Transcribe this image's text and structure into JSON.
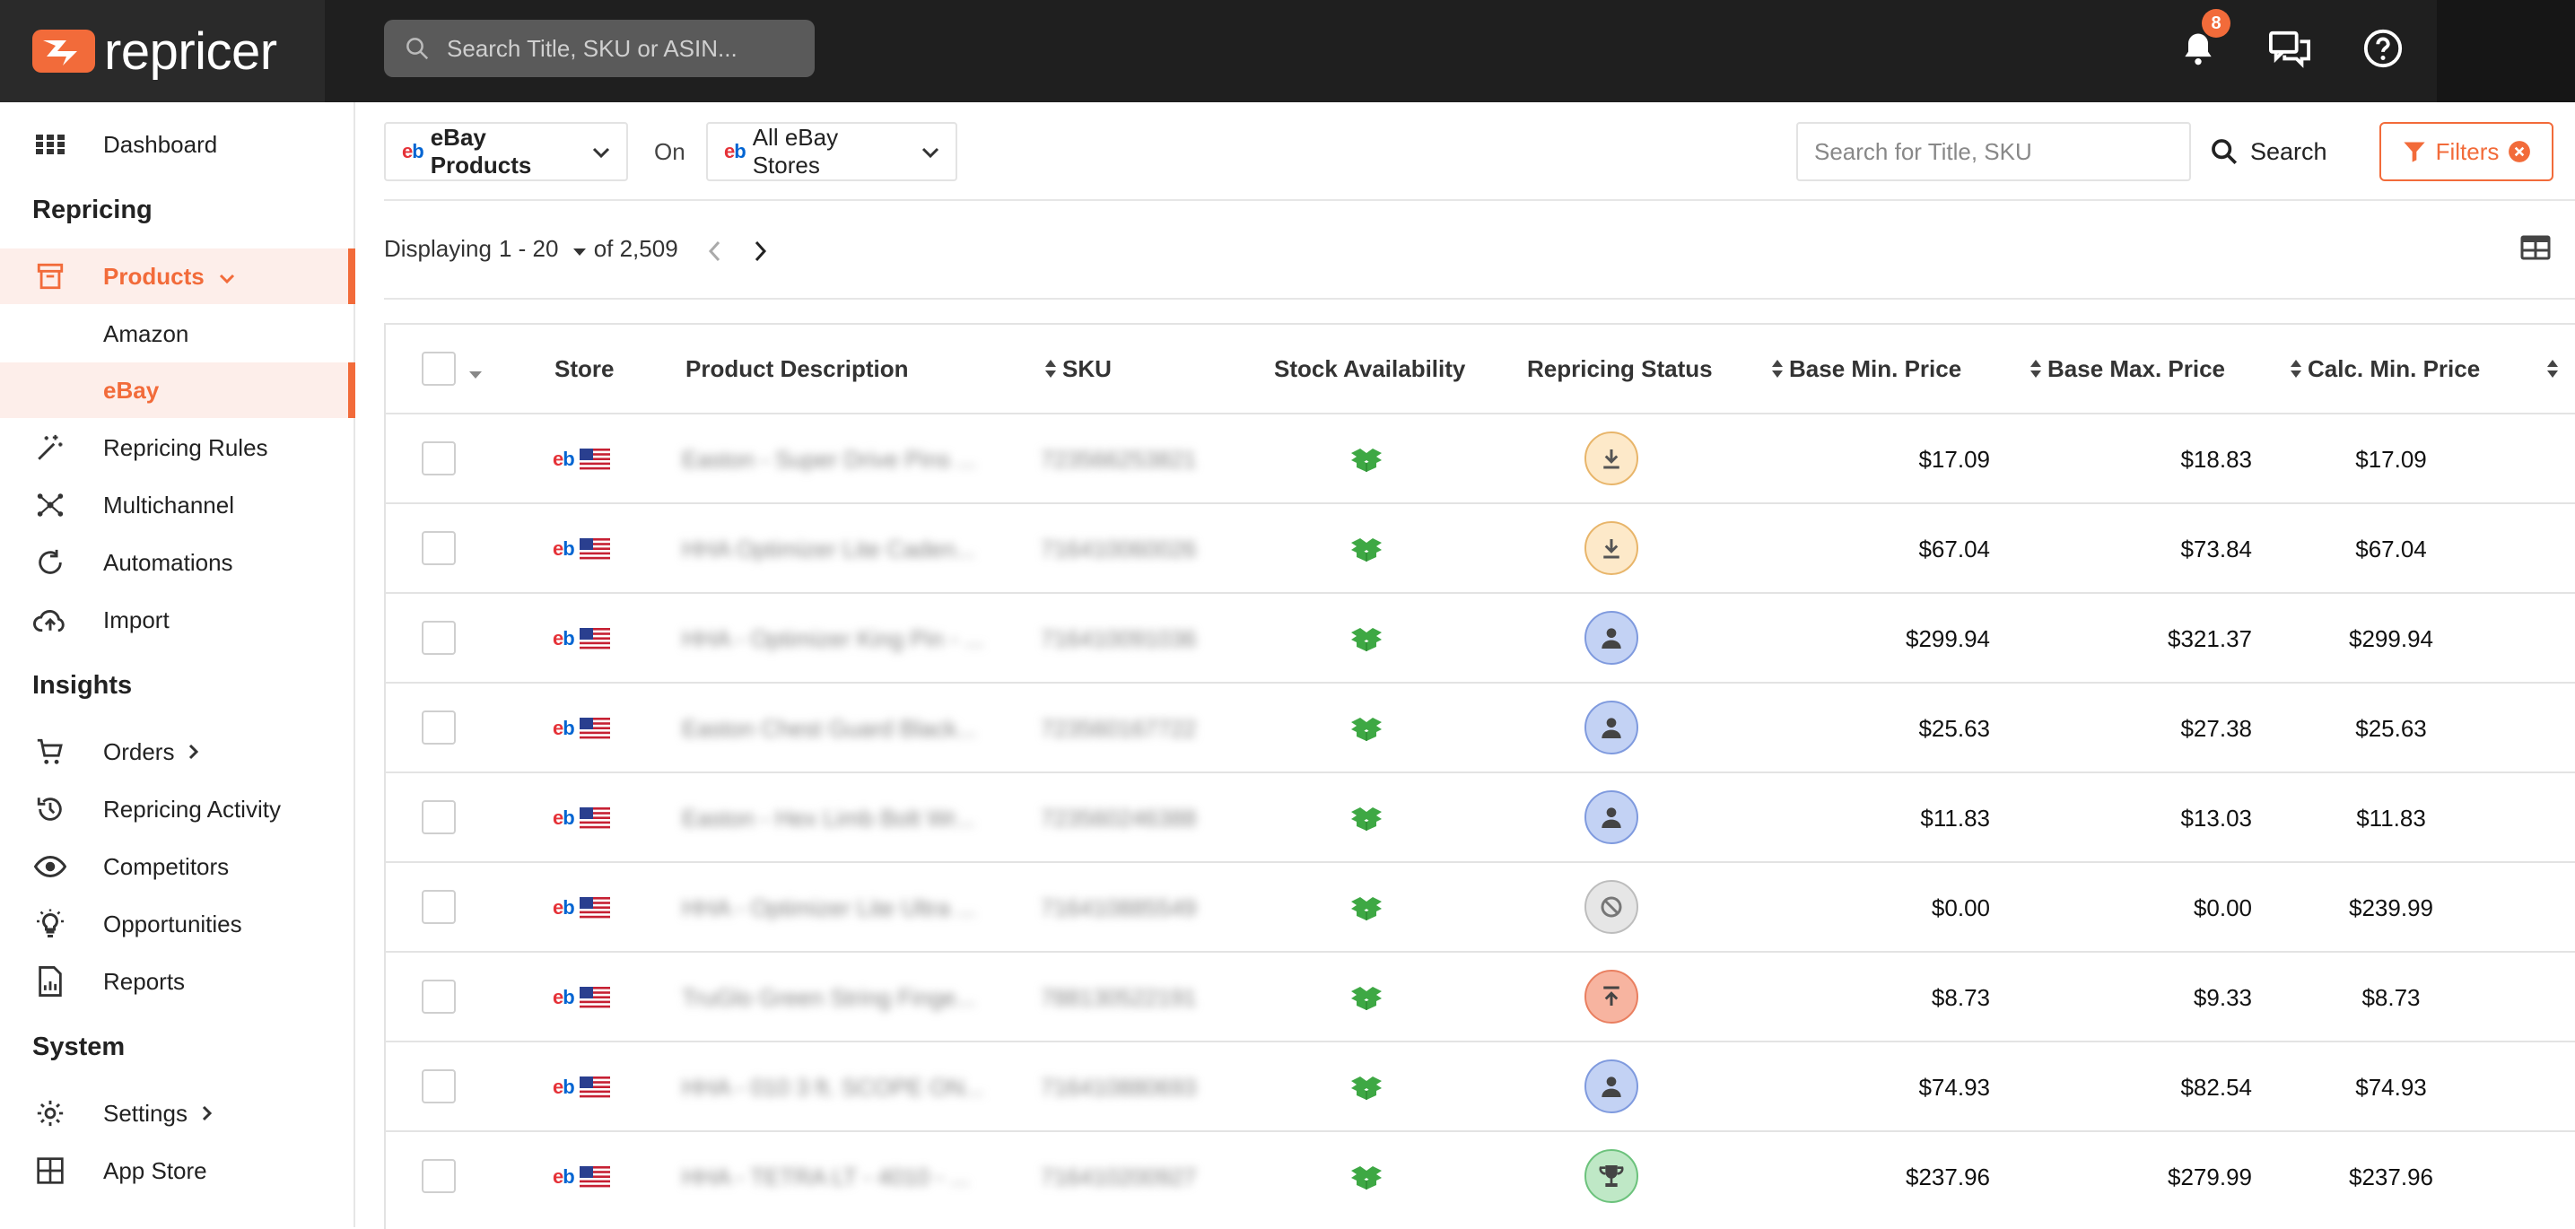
{
  "app": {
    "brand": "repricer"
  },
  "topbar": {
    "search_placeholder": "Search Title, SKU or ASIN...",
    "notification_count": "8"
  },
  "sidebar": {
    "dashboard": "Dashboard",
    "repricing_section": "Repricing",
    "products": "Products",
    "amazon": "Amazon",
    "ebay": "eBay",
    "repricing_rules": "Repricing Rules",
    "multichannel": "Multichannel",
    "automations": "Automations",
    "import": "Import",
    "insights_section": "Insights",
    "orders": "Orders",
    "repricing_activity": "Repricing Activity",
    "competitors": "Competitors",
    "opportunities": "Opportunities",
    "reports": "Reports",
    "system_section": "System",
    "settings": "Settings",
    "app_store": "App Store"
  },
  "toolbar": {
    "products_dropdown": "eBay Products",
    "on_label": "On",
    "stores_dropdown": "All eBay Stores",
    "search_placeholder": "Search for Title, SKU",
    "search_label": "Search",
    "filters_label": "Filters"
  },
  "pagination": {
    "prefix": "Displaying",
    "range": "1 - 20",
    "suffix": "of 2,509"
  },
  "table": {
    "headers": {
      "store": "Store",
      "description": "Product Description",
      "sku": "SKU",
      "stock": "Stock Availability",
      "status": "Repricing Status",
      "base_min": "Base Min. Price",
      "base_max": "Base Max. Price",
      "calc_min": "Calc. Min. Price"
    },
    "rows": [
      {
        "description": "Easton - Super Drive Pins ...",
        "sku": "723566253821",
        "status": "download",
        "base_min": "$17.09",
        "base_max": "$18.83",
        "calc_min": "$17.09"
      },
      {
        "description": "HHA Optimizer Lite Caden...",
        "sku": "716410060026",
        "status": "download",
        "base_min": "$67.04",
        "base_max": "$73.84",
        "calc_min": "$67.04"
      },
      {
        "description": "HHA - Optimizer King Pin - ...",
        "sku": "716410091036",
        "status": "person",
        "base_min": "$299.94",
        "base_max": "$321.37",
        "calc_min": "$299.94"
      },
      {
        "description": "Easton Chest Guard Black...",
        "sku": "723560167722",
        "status": "person",
        "base_min": "$25.63",
        "base_max": "$27.38",
        "calc_min": "$25.63"
      },
      {
        "description": "Easton - Hex Limb Bolt Wr...",
        "sku": "723560246388",
        "status": "person",
        "base_min": "$11.83",
        "base_max": "$13.03",
        "calc_min": "$11.83"
      },
      {
        "description": "HHA - Optimizer Lite Ultra ...",
        "sku": "716410885549",
        "status": "blocked",
        "base_min": "$0.00",
        "base_max": "$0.00",
        "calc_min": "$239.99"
      },
      {
        "description": "TruGlo Green String Finge...",
        "sku": "788130522191",
        "status": "upload",
        "base_min": "$8.73",
        "base_max": "$9.33",
        "calc_min": "$8.73"
      },
      {
        "description": "HHA - 010 3 ft. SCOPE ON...",
        "sku": "716410880693",
        "status": "person",
        "base_min": "$74.93",
        "base_max": "$82.54",
        "calc_min": "$74.93"
      },
      {
        "description": "HHA - TETRA LT - 4010 - ...",
        "sku": "716410200927",
        "status": "trophy",
        "base_min": "$237.96",
        "base_max": "$279.99",
        "calc_min": "$237.96"
      }
    ]
  },
  "colors": {
    "accent": "#f26b3a",
    "topbar": "#1f1f1f",
    "stock_green": "#3ea844"
  }
}
